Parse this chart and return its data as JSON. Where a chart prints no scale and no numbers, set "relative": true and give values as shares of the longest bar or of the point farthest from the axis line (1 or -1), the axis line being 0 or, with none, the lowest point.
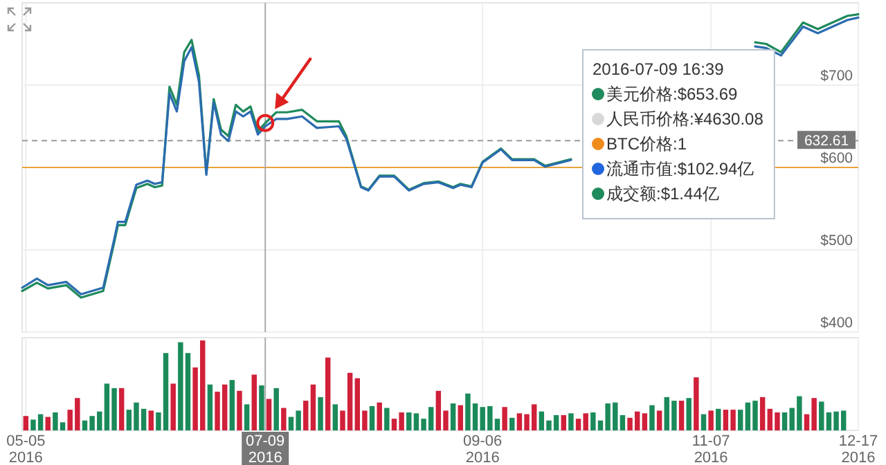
{
  "chart_data": [
    {
      "type": "line",
      "x": [
        "2016-05-04",
        "2016-05-08",
        "2016-05-11",
        "2016-05-16",
        "2016-05-20",
        "2016-05-26",
        "2016-05-29",
        "2016-05-30",
        "2016-06-01",
        "2016-06-04",
        "2016-06-07",
        "2016-06-09",
        "2016-06-11",
        "2016-06-13",
        "2016-06-15",
        "2016-06-17",
        "2016-06-19",
        "2016-06-21",
        "2016-06-23",
        "2016-06-25",
        "2016-06-27",
        "2016-06-29",
        "2016-07-01",
        "2016-07-03",
        "2016-07-05",
        "2016-07-07",
        "2016-07-09",
        "2016-07-12",
        "2016-07-15",
        "2016-07-19",
        "2016-07-23",
        "2016-07-29",
        "2016-07-31",
        "2016-08-04",
        "2016-08-06",
        "2016-08-09",
        "2016-08-13",
        "2016-08-17",
        "2016-08-21",
        "2016-08-25",
        "2016-08-29",
        "2016-08-31",
        "2016-09-03",
        "2016-09-06",
        "2016-09-11",
        "2016-09-14",
        "2016-09-20",
        "2016-09-23",
        "2016-09-30",
        "2016-10-05",
        "2016-11-19",
        "2016-11-22",
        "2016-11-26",
        "2016-12-02",
        "2016-12-06",
        "2016-12-14",
        "2016-12-17"
      ],
      "series": [
        {
          "color": "#1f8a5c",
          "values": [
            450,
            460,
            453,
            457,
            442,
            450,
            509,
            530,
            530,
            575,
            580,
            576,
            578,
            698,
            676,
            740,
            755,
            712,
            593,
            683,
            646,
            638,
            676,
            668,
            674,
            644,
            654,
            667,
            667,
            670,
            656,
            656,
            638,
            577,
            573,
            590,
            590,
            573,
            581,
            583,
            576,
            580,
            577,
            607,
            623,
            610,
            610,
            602,
            610,
            null,
            752,
            750,
            740,
            776,
            768,
            784,
            786
          ]
        },
        {
          "color": "#2b6cb0",
          "values": [
            454,
            465,
            457,
            461,
            446,
            454,
            513,
            534,
            534,
            579,
            584,
            580,
            582,
            690,
            668,
            729,
            746,
            704,
            591,
            679,
            640,
            632,
            668,
            662,
            668,
            640,
            650,
            659,
            659,
            662,
            648,
            650,
            635,
            576,
            572,
            589,
            589,
            572,
            580,
            582,
            575,
            579,
            576,
            606,
            622,
            609,
            609,
            601,
            609,
            null,
            747,
            745,
            736,
            771,
            763,
            779,
            782
          ]
        }
      ],
      "xlim": [
        "2016-05-04",
        "2016-12-17"
      ],
      "xticks": [
        {
          "value": "2016-05-05",
          "label": null
        },
        {
          "value": "2016-09-06",
          "label": null
        },
        {
          "value": "2016-11-07",
          "label": null
        },
        {
          "value": "2016-12-17",
          "label": null
        }
      ],
      "ylim": [
        400,
        800
      ],
      "yticks": [
        {
          "value": 400,
          "label": "$400"
        },
        {
          "value": 500,
          "label": "$500"
        },
        {
          "value": 600,
          "label": "$600"
        },
        {
          "value": 700,
          "label": "$700"
        }
      ],
      "tick_labels": "y",
      "grid": true,
      "ref_lines": [
        {
          "axis": "y",
          "value": 632.61,
          "label": "632.61",
          "color": "#999999",
          "line_style": "dashed"
        },
        {
          "axis": "y",
          "value": 600,
          "color": "#e8a33c"
        },
        {
          "axis": "x",
          "value": "2016-07-09",
          "color": "#aaaaaa"
        }
      ],
      "annotations": [
        "2016-07-09 16:39",
        "美元价格:$653.69",
        "人民币价格:¥4630.08",
        "BTC价格:1",
        "流通市值:$102.94亿",
        "成交额:$1.44亿"
      ]
    },
    {
      "type": "bar",
      "relative": true,
      "x": [
        "2016-05-05",
        "2016-05-07",
        "2016-05-09",
        "2016-05-11",
        "2016-05-13",
        "2016-05-15",
        "2016-05-17",
        "2016-05-19",
        "2016-05-21",
        "2016-05-23",
        "2016-05-25",
        "2016-05-27",
        "2016-05-29",
        "2016-05-31",
        "2016-06-02",
        "2016-06-04",
        "2016-06-06",
        "2016-06-08",
        "2016-06-10",
        "2016-06-12",
        "2016-06-14",
        "2016-06-16",
        "2016-06-18",
        "2016-06-20",
        "2016-06-22",
        "2016-06-24",
        "2016-06-26",
        "2016-06-28",
        "2016-06-30",
        "2016-07-02",
        "2016-07-04",
        "2016-07-06",
        "2016-07-08",
        "2016-07-10",
        "2016-07-12",
        "2016-07-14",
        "2016-07-16",
        "2016-07-18",
        "2016-07-20",
        "2016-07-22",
        "2016-07-24",
        "2016-07-26",
        "2016-07-28",
        "2016-07-30",
        "2016-08-01",
        "2016-08-03",
        "2016-08-05",
        "2016-08-07",
        "2016-08-09",
        "2016-08-11",
        "2016-08-13",
        "2016-08-15",
        "2016-08-17",
        "2016-08-19",
        "2016-08-21",
        "2016-08-23",
        "2016-08-25",
        "2016-08-27",
        "2016-08-29",
        "2016-08-31",
        "2016-09-02",
        "2016-09-04",
        "2016-09-06",
        "2016-09-08",
        "2016-09-10",
        "2016-09-12",
        "2016-09-14",
        "2016-09-16",
        "2016-09-18",
        "2016-09-20",
        "2016-09-22",
        "2016-09-24",
        "2016-09-26",
        "2016-09-28",
        "2016-09-30",
        "2016-10-02",
        "2016-10-04",
        "2016-10-06",
        "2016-10-08",
        "2016-10-10",
        "2016-10-12",
        "2016-10-14",
        "2016-10-16",
        "2016-10-18",
        "2016-10-20",
        "2016-10-22",
        "2016-10-24",
        "2016-10-26",
        "2016-10-28",
        "2016-10-30",
        "2016-11-01",
        "2016-11-03",
        "2016-11-05",
        "2016-11-07",
        "2016-11-09",
        "2016-11-11",
        "2016-11-13",
        "2016-11-15",
        "2016-11-17",
        "2016-11-19",
        "2016-11-21",
        "2016-11-23",
        "2016-11-25",
        "2016-11-27",
        "2016-11-29",
        "2016-12-01",
        "2016-12-03",
        "2016-12-05",
        "2016-12-07",
        "2016-12-09",
        "2016-12-11",
        "2016-12-13"
      ],
      "values": [
        0.16,
        0.12,
        0.18,
        0.15,
        0.2,
        0.09,
        0.23,
        0.36,
        0.11,
        0.16,
        0.21,
        0.52,
        0.47,
        0.47,
        0.23,
        0.31,
        0.24,
        0.22,
        0.2,
        0.86,
        0.52,
        0.98,
        0.86,
        0.7,
        1,
        0.51,
        0.43,
        0.51,
        0.56,
        0.44,
        0.29,
        0.62,
        0.5,
        0.35,
        0.47,
        0.25,
        0.15,
        0.22,
        0.33,
        0.51,
        0.37,
        0.81,
        0.29,
        0.22,
        0.64,
        0.58,
        0.22,
        0.27,
        0.31,
        0.25,
        0.13,
        0.2,
        0.2,
        0.19,
        0.13,
        0.26,
        0.44,
        0.22,
        0.3,
        0.28,
        0.41,
        0.3,
        0.26,
        0.27,
        0.13,
        0.26,
        0.14,
        0.19,
        0.18,
        0.29,
        0.21,
        0.11,
        0.17,
        0.17,
        0.19,
        0.13,
        0.19,
        0.2,
        0.11,
        0.3,
        0.31,
        0.17,
        0.14,
        0.21,
        0.19,
        0.28,
        0.22,
        0.37,
        0.33,
        0.33,
        0.36,
        0.59,
        0.18,
        0.22,
        0.24,
        0.23,
        0.23,
        0.23,
        0.31,
        0.33,
        0.37,
        0.24,
        0.2,
        0.2,
        0.25,
        0.38,
        0.18,
        0.36,
        0.32,
        0.2,
        0.21,
        0.22
      ],
      "colors": [
        "#d0203a",
        "#1b8a5a",
        "#1b8a5a",
        "#d0203a",
        "#1b8a5a",
        "#1b8a5a",
        "#d0203a",
        "#d0203a",
        "#1b8a5a",
        "#1b8a5a",
        "#1b8a5a",
        "#1b8a5a",
        "#1b8a5a",
        "#d0203a",
        "#1b8a5a",
        "#1b8a5a",
        "#1b8a5a",
        "#d0203a",
        "#1b8a5a",
        "#1b8a5a",
        "#d0203a",
        "#1b8a5a",
        "#1b8a5a",
        "#d0203a",
        "#d0203a",
        "#1b8a5a",
        "#d0203a",
        "#d0203a",
        "#1b8a5a",
        "#d0203a",
        "#1b8a5a",
        "#d0203a",
        "#1b8a5a",
        "#d0203a",
        "#1b8a5a",
        "#d0203a",
        "#1b8a5a",
        "#1b8a5a",
        "#d0203a",
        "#d0203a",
        "#1b8a5a",
        "#d0203a",
        "#1b8a5a",
        "#d0203a",
        "#d0203a",
        "#d0203a",
        "#d0203a",
        "#1b8a5a",
        "#d0203a",
        "#1b8a5a",
        "#d0203a",
        "#d0203a",
        "#1b8a5a",
        "#1b8a5a",
        "#1b8a5a",
        "#1b8a5a",
        "#d0203a",
        "#d0203a",
        "#1b8a5a",
        "#d0203a",
        "#1b8a5a",
        "#1b8a5a",
        "#1b8a5a",
        "#1b8a5a",
        "#1b8a5a",
        "#d0203a",
        "#1b8a5a",
        "#d0203a",
        "#d0203a",
        "#d0203a",
        "#1b8a5a",
        "#1b8a5a",
        "#1b8a5a",
        "#d0203a",
        "#1b8a5a",
        "#d0203a",
        "#d0203a",
        "#1b8a5a",
        "#1b8a5a",
        "#1b8a5a",
        "#1b8a5a",
        "#1b8a5a",
        "#d0203a",
        "#d0203a",
        "#d0203a",
        "#1b8a5a",
        "#d0203a",
        "#1b8a5a",
        "#1b8a5a",
        "#d0203a",
        "#1b8a5a",
        "#d0203a",
        "#1b8a5a",
        "#d0203a",
        "#1b8a5a",
        "#d0203a",
        "#d0203a",
        "#1b8a5a",
        "#1b8a5a",
        "#1b8a5a",
        "#d0203a",
        "#d0203a",
        "#d0203a",
        "#1b8a5a",
        "#1b8a5a",
        "#1b8a5a",
        "#d0203a",
        "#d0203a",
        "#1b8a5a",
        "#1b8a5a",
        "#1b8a5a",
        "#1b8a5a"
      ],
      "xlim": [
        "2016-05-04",
        "2016-12-17"
      ],
      "xticks": [
        {
          "value": "2016-05-05",
          "label": "05-05\n2016"
        },
        {
          "value": "2016-09-06",
          "label": "09-06\n2016"
        },
        {
          "value": "2016-11-07",
          "label": "11-07\n2016"
        },
        {
          "value": "2016-12-17",
          "label": "12-17\n2016"
        }
      ],
      "tick_labels": "x",
      "grid": "x",
      "ref_lines": [
        {
          "axis": "x",
          "value": "2016-07-09",
          "label": "07-09\n2016",
          "color": "#aaaaaa"
        }
      ]
    }
  ]
}
